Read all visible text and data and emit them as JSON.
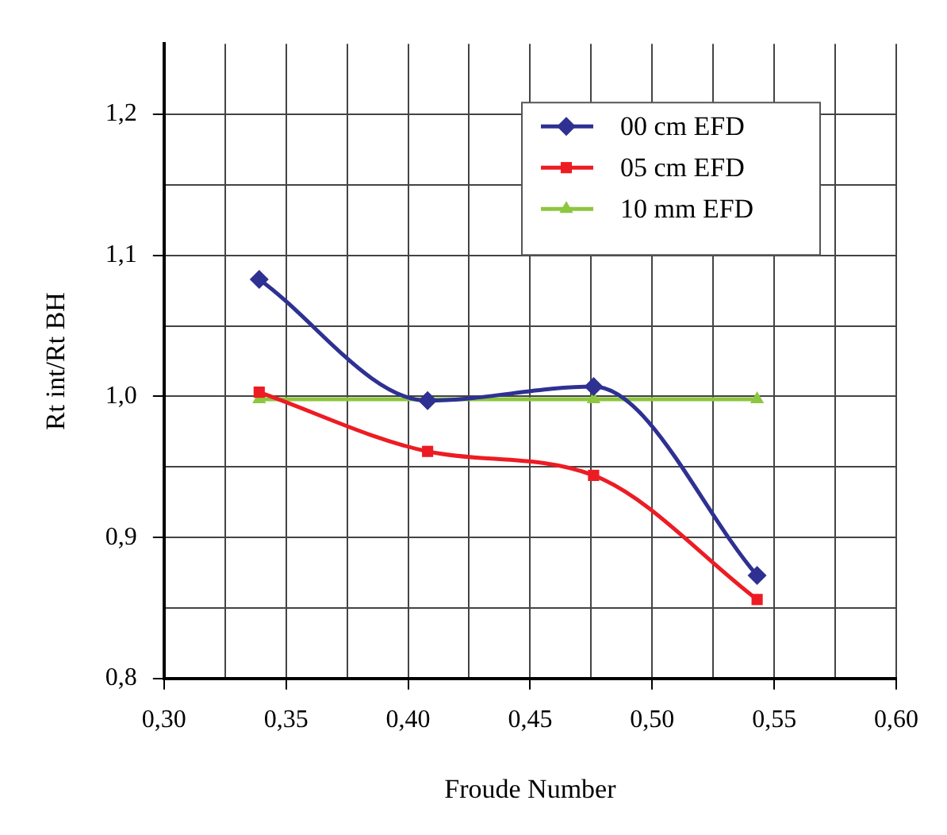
{
  "chart_data": {
    "type": "line",
    "xlabel": "Froude Number",
    "ylabel": "Rt int/Rt BH",
    "xlim": [
      0.3,
      0.6
    ],
    "xticks": [
      {
        "value": 0.3,
        "label": "0,30"
      },
      {
        "value": 0.325,
        "label": null
      },
      {
        "value": 0.35,
        "label": "0,35"
      },
      {
        "value": 0.375,
        "label": null
      },
      {
        "value": 0.4,
        "label": "0,40"
      },
      {
        "value": 0.425,
        "label": null
      },
      {
        "value": 0.45,
        "label": "0,45"
      },
      {
        "value": 0.475,
        "label": null
      },
      {
        "value": 0.5,
        "label": "0,50"
      },
      {
        "value": 0.525,
        "label": null
      },
      {
        "value": 0.55,
        "label": "0,55"
      },
      {
        "value": 0.575,
        "label": null
      },
      {
        "value": 0.6,
        "label": "0,60"
      }
    ],
    "ylim": [
      0.8,
      1.25
    ],
    "yticks": [
      {
        "value": 0.8,
        "label": "0,8"
      },
      {
        "value": 0.85,
        "label": null
      },
      {
        "value": 0.9,
        "label": "0,9"
      },
      {
        "value": 0.95,
        "label": null
      },
      {
        "value": 1.0,
        "label": "1,0"
      },
      {
        "value": 1.05,
        "label": null
      },
      {
        "value": 1.1,
        "label": "1,1"
      },
      {
        "value": 1.15,
        "label": null
      },
      {
        "value": 1.2,
        "label": "1,2"
      }
    ],
    "grid": true,
    "legend": "top right",
    "line_style": "solid",
    "series": [
      {
        "name": "00 cm EFD",
        "color": "#2e3192",
        "marker": "diamond",
        "x": [
          0.339,
          0.408,
          0.476,
          0.543
        ],
        "values": [
          1.083,
          0.997,
          1.007,
          0.873
        ]
      },
      {
        "name": "05 cm EFD",
        "color": "#ed1c24",
        "marker": "square",
        "x": [
          0.339,
          0.408,
          0.476,
          0.543
        ],
        "values": [
          1.003,
          0.961,
          0.944,
          0.856
        ]
      },
      {
        "name": "10 mm EFD",
        "color": "#8dc63f",
        "marker": "triangle",
        "x": [
          0.339,
          0.408,
          0.476,
          0.543
        ],
        "values": [
          0.998,
          0.998,
          0.998,
          0.998
        ]
      }
    ]
  }
}
